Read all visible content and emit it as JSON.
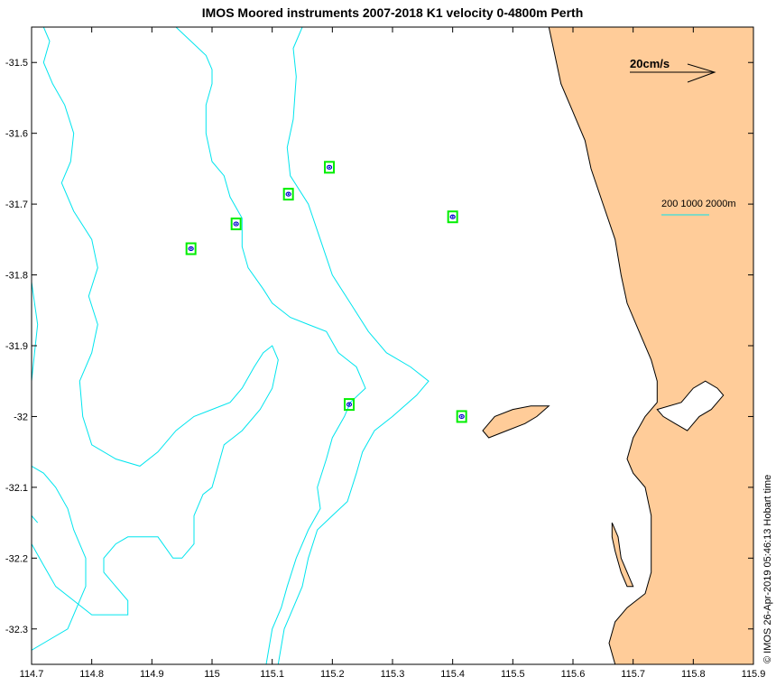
{
  "title": "IMOS Moored instruments 2007-2018 K1 velocity 0-4800m Perth",
  "footer_stamp": "© IMOS 26-Apr-2019 05:46:13 Hobart time",
  "scale_label": "20cm/s",
  "bathy_legend_label": "200 1000 2000m",
  "colors": {
    "land": "#FFCC99",
    "isobath": "#00E5EE",
    "marker": "#00EE00",
    "ellipse": "#0000CC"
  },
  "chart_data": {
    "type": "map",
    "xlim": [
      114.7,
      115.9
    ],
    "ylim": [
      -32.35,
      -31.45
    ],
    "x_ticks": [
      114.7,
      114.8,
      114.9,
      115,
      115.1,
      115.2,
      115.3,
      115.4,
      115.5,
      115.6,
      115.7,
      115.8,
      115.9
    ],
    "y_ticks": [
      -31.5,
      -31.6,
      -31.7,
      -31.8,
      -31.9,
      -32,
      -32.1,
      -32.2,
      -32.3
    ],
    "x_tick_labels": [
      "114.7",
      "114.8",
      "114.9",
      "115",
      "115.1",
      "115.2",
      "115.3",
      "115.4",
      "115.5",
      "115.6",
      "115.7",
      "115.8",
      "115.9"
    ],
    "y_tick_labels": [
      "-31.5",
      "-31.6",
      "-31.7",
      "-31.8",
      "-31.9",
      "-32",
      "-32.1",
      "-32.2",
      "-32.3"
    ],
    "moorings": [
      {
        "lon": 114.965,
        "lat": -31.763
      },
      {
        "lon": 115.04,
        "lat": -31.728
      },
      {
        "lon": 115.127,
        "lat": -31.686
      },
      {
        "lon": 115.195,
        "lat": -31.648
      },
      {
        "lon": 115.4,
        "lat": -31.718
      },
      {
        "lon": 115.228,
        "lat": -31.983
      },
      {
        "lon": 115.415,
        "lat": -32.0
      }
    ],
    "isobaths": [
      [
        [
          114.72,
          -31.45
        ],
        [
          114.73,
          -31.47
        ],
        [
          114.72,
          -31.5
        ],
        [
          114.735,
          -31.53
        ],
        [
          114.755,
          -31.56
        ],
        [
          114.77,
          -31.6
        ],
        [
          114.765,
          -31.64
        ],
        [
          114.75,
          -31.67
        ],
        [
          114.77,
          -31.71
        ],
        [
          114.8,
          -31.75
        ],
        [
          114.81,
          -31.79
        ],
        [
          114.795,
          -31.83
        ],
        [
          114.81,
          -31.87
        ],
        [
          114.8,
          -31.91
        ],
        [
          114.78,
          -31.95
        ],
        [
          114.785,
          -32.0
        ],
        [
          114.8,
          -32.04
        ],
        [
          114.84,
          -32.06
        ],
        [
          114.88,
          -32.07
        ],
        [
          114.91,
          -32.05
        ],
        [
          114.94,
          -32.02
        ],
        [
          114.97,
          -32.0
        ],
        [
          115.0,
          -31.99
        ],
        [
          115.03,
          -31.98
        ],
        [
          115.05,
          -31.96
        ],
        [
          115.07,
          -31.93
        ],
        [
          115.085,
          -31.91
        ],
        [
          115.1,
          -31.9
        ],
        [
          115.11,
          -31.92
        ],
        [
          115.1,
          -31.96
        ],
        [
          115.08,
          -31.99
        ],
        [
          115.05,
          -32.02
        ],
        [
          115.02,
          -32.04
        ],
        [
          115.01,
          -32.07
        ],
        [
          115.0,
          -32.1
        ],
        [
          114.985,
          -32.11
        ],
        [
          114.97,
          -32.14
        ],
        [
          114.97,
          -32.18
        ],
        [
          114.95,
          -32.2
        ],
        [
          114.935,
          -32.2
        ],
        [
          114.91,
          -32.17
        ],
        [
          114.88,
          -32.17
        ],
        [
          114.86,
          -32.17
        ],
        [
          114.84,
          -32.18
        ],
        [
          114.82,
          -32.2
        ],
        [
          114.82,
          -32.22
        ],
        [
          114.84,
          -32.24
        ],
        [
          114.86,
          -32.26
        ],
        [
          114.86,
          -32.28
        ],
        [
          114.84,
          -32.28
        ],
        [
          114.8,
          -32.28
        ],
        [
          114.77,
          -32.26
        ],
        [
          114.74,
          -32.24
        ],
        [
          114.72,
          -32.21
        ],
        [
          114.7,
          -32.18
        ]
      ],
      [
        [
          114.7,
          -31.81
        ],
        [
          114.705,
          -31.84
        ],
        [
          114.71,
          -31.87
        ],
        [
          114.705,
          -31.91
        ],
        [
          114.7,
          -31.95
        ]
      ],
      [
        [
          114.7,
          -32.07
        ],
        [
          114.72,
          -32.08
        ],
        [
          114.74,
          -32.1
        ],
        [
          114.76,
          -32.13
        ],
        [
          114.77,
          -32.16
        ],
        [
          114.79,
          -32.2
        ],
        [
          114.79,
          -32.24
        ],
        [
          114.78,
          -32.26
        ],
        [
          114.76,
          -32.3
        ],
        [
          114.72,
          -32.32
        ],
        [
          114.7,
          -32.33
        ]
      ],
      [
        [
          114.7,
          -32.14
        ],
        [
          114.71,
          -32.15
        ]
      ],
      [
        [
          114.94,
          -31.45
        ],
        [
          114.965,
          -31.47
        ],
        [
          114.99,
          -31.49
        ],
        [
          115.0,
          -31.51
        ],
        [
          115.0,
          -31.53
        ],
        [
          114.99,
          -31.56
        ],
        [
          114.99,
          -31.6
        ],
        [
          115.0,
          -31.64
        ],
        [
          115.02,
          -31.66
        ],
        [
          115.03,
          -31.69
        ],
        [
          115.05,
          -31.72
        ],
        [
          115.05,
          -31.76
        ],
        [
          115.06,
          -31.79
        ],
        [
          115.085,
          -31.82
        ],
        [
          115.1,
          -31.84
        ],
        [
          115.13,
          -31.86
        ],
        [
          115.16,
          -31.87
        ],
        [
          115.19,
          -31.88
        ],
        [
          115.21,
          -31.91
        ],
        [
          115.24,
          -31.93
        ],
        [
          115.255,
          -31.96
        ],
        [
          115.23,
          -31.98
        ],
        [
          115.22,
          -32.0
        ],
        [
          115.2,
          -32.03
        ],
        [
          115.19,
          -32.06
        ],
        [
          115.175,
          -32.1
        ],
        [
          115.18,
          -32.13
        ],
        [
          115.16,
          -32.16
        ],
        [
          115.14,
          -32.2
        ],
        [
          115.125,
          -32.24
        ],
        [
          115.115,
          -32.27
        ],
        [
          115.1,
          -32.3
        ],
        [
          115.09,
          -32.35
        ]
      ],
      [
        [
          115.15,
          -31.45
        ],
        [
          115.135,
          -31.48
        ],
        [
          115.14,
          -31.52
        ],
        [
          115.135,
          -31.58
        ],
        [
          115.125,
          -31.62
        ],
        [
          115.13,
          -31.66
        ],
        [
          115.16,
          -31.7
        ],
        [
          115.18,
          -31.75
        ],
        [
          115.2,
          -31.8
        ],
        [
          115.23,
          -31.84
        ],
        [
          115.26,
          -31.88
        ],
        [
          115.29,
          -31.91
        ],
        [
          115.33,
          -31.93
        ],
        [
          115.36,
          -31.95
        ],
        [
          115.34,
          -31.97
        ],
        [
          115.3,
          -32.0
        ],
        [
          115.27,
          -32.02
        ],
        [
          115.25,
          -32.05
        ],
        [
          115.24,
          -32.08
        ],
        [
          115.225,
          -32.12
        ],
        [
          115.2,
          -32.14
        ],
        [
          115.175,
          -32.16
        ],
        [
          115.16,
          -32.2
        ],
        [
          115.15,
          -32.24
        ],
        [
          115.13,
          -32.28
        ],
        [
          115.12,
          -32.3
        ],
        [
          115.11,
          -32.35
        ]
      ]
    ],
    "mainland": [
      [
        115.56,
        -31.45
      ],
      [
        115.57,
        -31.49
      ],
      [
        115.58,
        -31.53
      ],
      [
        115.6,
        -31.57
      ],
      [
        115.62,
        -31.61
      ],
      [
        115.63,
        -31.65
      ],
      [
        115.65,
        -31.7
      ],
      [
        115.67,
        -31.75
      ],
      [
        115.68,
        -31.8
      ],
      [
        115.69,
        -31.84
      ],
      [
        115.71,
        -31.88
      ],
      [
        115.73,
        -31.92
      ],
      [
        115.74,
        -31.95
      ],
      [
        115.74,
        -31.98
      ],
      [
        115.72,
        -32.0
      ],
      [
        115.7,
        -32.03
      ],
      [
        115.69,
        -32.06
      ],
      [
        115.7,
        -32.08
      ],
      [
        115.72,
        -32.1
      ],
      [
        115.73,
        -32.14
      ],
      [
        115.73,
        -32.18
      ],
      [
        115.73,
        -32.22
      ],
      [
        115.72,
        -32.25
      ],
      [
        115.69,
        -32.27
      ],
      [
        115.67,
        -32.29
      ],
      [
        115.66,
        -32.32
      ],
      [
        115.67,
        -32.35
      ],
      [
        115.9,
        -32.35
      ],
      [
        115.9,
        -31.45
      ]
    ],
    "river": [
      [
        115.74,
        -31.99
      ],
      [
        115.78,
        -31.98
      ],
      [
        115.8,
        -31.96
      ],
      [
        115.82,
        -31.95
      ],
      [
        115.84,
        -31.96
      ],
      [
        115.85,
        -31.97
      ],
      [
        115.83,
        -31.99
      ],
      [
        115.81,
        -32.0
      ],
      [
        115.79,
        -32.02
      ],
      [
        115.77,
        -32.01
      ],
      [
        115.75,
        -32.0
      ]
    ],
    "islands": [
      [
        [
          115.45,
          -32.02
        ],
        [
          115.47,
          -32.0
        ],
        [
          115.5,
          -31.99
        ],
        [
          115.53,
          -31.985
        ],
        [
          115.56,
          -31.985
        ],
        [
          115.54,
          -32.0
        ],
        [
          115.52,
          -32.01
        ],
        [
          115.49,
          -32.02
        ],
        [
          115.46,
          -32.03
        ]
      ],
      [
        [
          115.665,
          -32.15
        ],
        [
          115.675,
          -32.17
        ],
        [
          115.68,
          -32.2
        ],
        [
          115.69,
          -32.22
        ],
        [
          115.7,
          -32.24
        ],
        [
          115.69,
          -32.24
        ],
        [
          115.68,
          -32.22
        ],
        [
          115.67,
          -32.19
        ],
        [
          115.665,
          -32.17
        ]
      ]
    ]
  }
}
